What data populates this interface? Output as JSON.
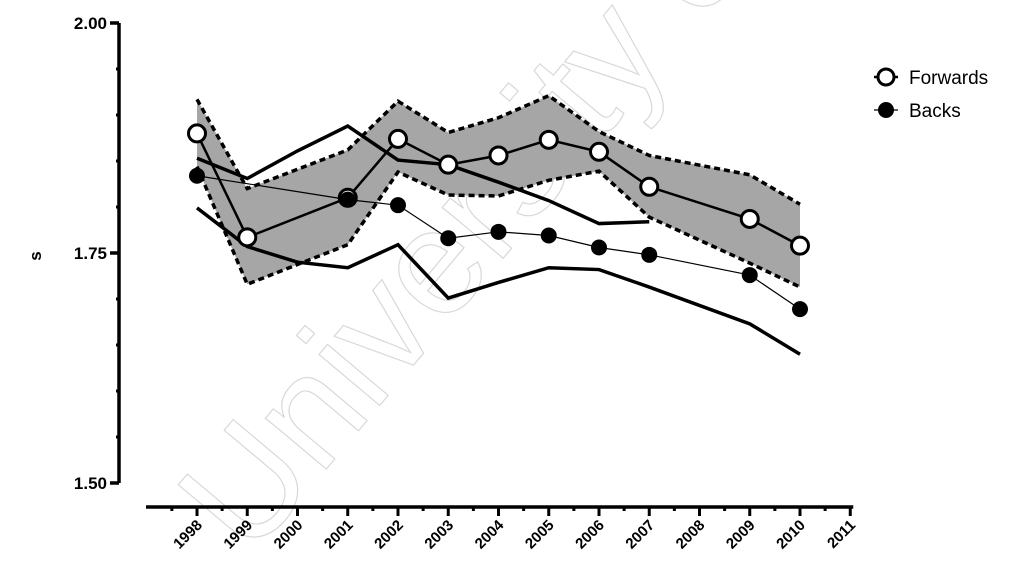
{
  "chart_data": {
    "type": "line",
    "title": "",
    "xlabel": "",
    "ylabel": "s",
    "ylim": [
      1.5,
      2.0
    ],
    "y_ticks": [
      {
        "value": 1.5,
        "label": "1.50"
      },
      {
        "value": 1.75,
        "label": "1.75"
      },
      {
        "value": 2.0,
        "label": "2.00"
      }
    ],
    "x_ticks": [
      "1998",
      "1999",
      "2000",
      "2001",
      "2002",
      "2003",
      "2004",
      "2005",
      "2006",
      "2007",
      "2008",
      "2009",
      "2010",
      "2011"
    ],
    "xlim": [
      1998,
      2011
    ],
    "grid": false,
    "legend_position": "top-right",
    "series": [
      {
        "name": "Forwards",
        "marker": "open-circle",
        "x": [
          1998,
          1999,
          2001,
          2002,
          2003,
          2004,
          2005,
          2006,
          2007,
          2009,
          2010
        ],
        "values": [
          1.88,
          1.767,
          1.81,
          1.874,
          1.846,
          1.856,
          1.873,
          1.86,
          1.822,
          1.787,
          1.758
        ]
      },
      {
        "name": "Backs",
        "marker": "filled-circle",
        "x": [
          1998,
          2001,
          2002,
          2003,
          2004,
          2005,
          2006,
          2007,
          2009,
          2010
        ],
        "values": [
          1.834,
          1.808,
          1.802,
          1.766,
          1.773,
          1.769,
          1.756,
          1.748,
          1.726,
          1.689
        ]
      }
    ],
    "forwards_band": {
      "x": [
        1998,
        1999,
        2001,
        2002,
        2003,
        2004,
        2005,
        2006,
        2007,
        2009,
        2010
      ],
      "upper": [
        1.917,
        1.82,
        1.862,
        1.915,
        1.881,
        1.897,
        1.921,
        1.882,
        1.856,
        1.835,
        1.803
      ],
      "lower": [
        1.844,
        1.716,
        1.759,
        1.838,
        1.813,
        1.812,
        1.829,
        1.839,
        1.789,
        1.739,
        1.713
      ]
    },
    "backs_band": {
      "x": [
        1998,
        1999,
        2000,
        2001,
        2002,
        2003,
        2004,
        2005,
        2006,
        2007,
        2009,
        2010
      ],
      "upper": [
        1.853,
        1.831,
        1.861,
        1.888,
        1.851,
        1.846,
        1.827,
        1.807,
        1.782,
        1.784,
        null,
        null
      ],
      "lower": [
        1.799,
        1.757,
        1.74,
        1.734,
        1.759,
        1.701,
        1.718,
        1.734,
        1.732,
        1.713,
        1.673,
        1.64
      ]
    },
    "colors": {
      "line": "#000000",
      "band_fill": "#a6a6a6",
      "background": "#ffffff",
      "watermark": "#d8d8d8"
    }
  },
  "watermark": {
    "text": "University of Cape Town"
  }
}
